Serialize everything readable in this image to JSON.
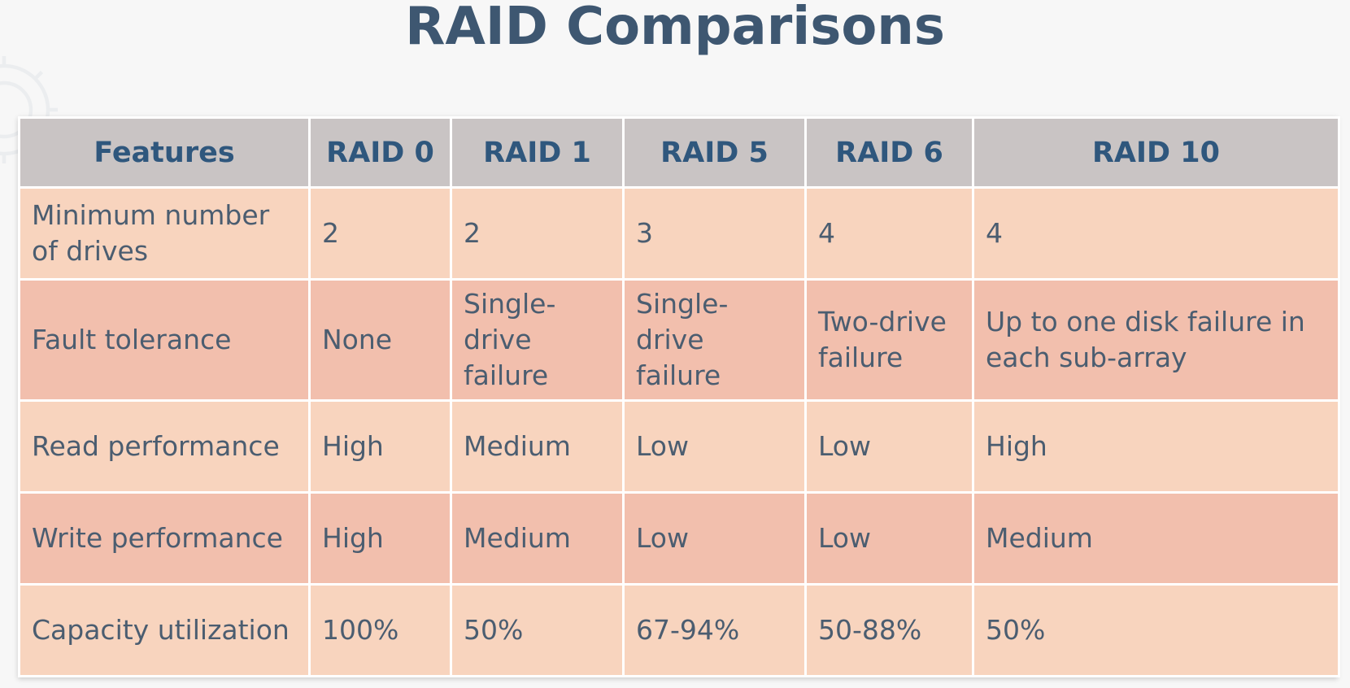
{
  "title": "RAID Comparisons",
  "table": {
    "headers": [
      "Features",
      "RAID 0",
      "RAID 1",
      "RAID 5",
      "RAID 6",
      "RAID 10"
    ],
    "rows": [
      [
        "Minimum number of drives",
        "2",
        "2",
        "3",
        "4",
        "4"
      ],
      [
        "Fault tolerance",
        "None",
        "Single-drive failure",
        "Single-drive failure",
        "Two-drive failure",
        "Up to one disk failure in each sub-array"
      ],
      [
        "Read performance",
        "High",
        "Medium",
        "Low",
        "Low",
        "High"
      ],
      [
        "Write performance",
        "High",
        "Medium",
        "Low",
        "Low",
        "Medium"
      ],
      [
        "Capacity utilization",
        "100%",
        "50%",
        "67-94%",
        "50-88%",
        "50%"
      ]
    ]
  },
  "colors": {
    "title": "#3e5771",
    "header_bg": "#c9c4c4",
    "header_text": "#2f577d",
    "row_light": "#f8d4be",
    "row_dark": "#f2bfad",
    "cell_text": "#4b5d70"
  },
  "icons": {
    "background": "gear-icon"
  }
}
